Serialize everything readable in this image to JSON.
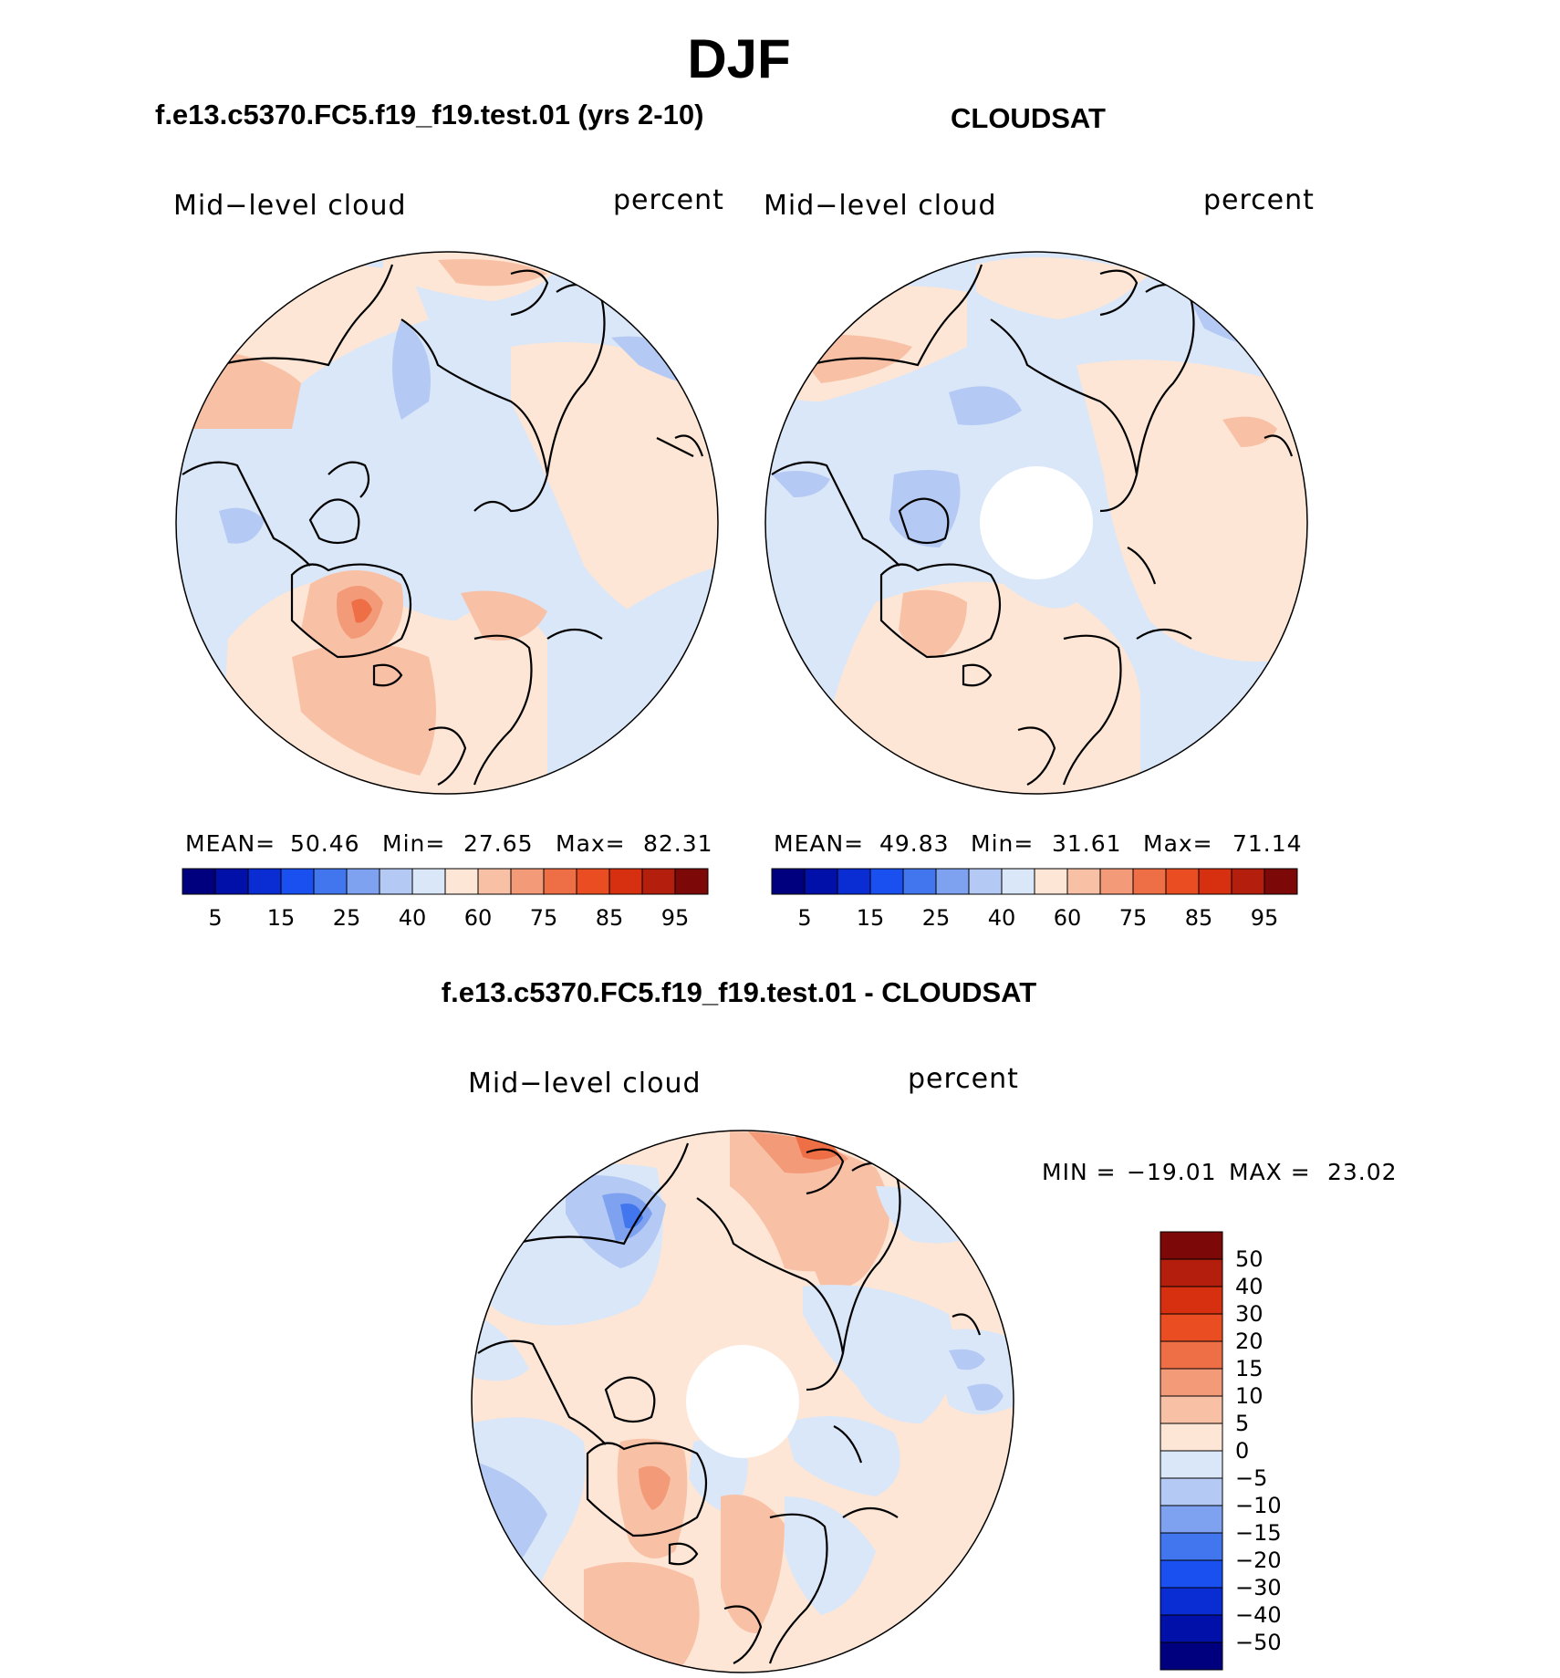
{
  "season": "DJF",
  "panels": {
    "model": {
      "title": "f.e13.c5370.FC5.f19_f19.test.01 (yrs 2-10)",
      "variable": "Mid−level cloud",
      "units": "percent",
      "mean_label": "MEAN=",
      "mean": "50.46",
      "min_label": "Min=",
      "min": "27.65",
      "max_label": "Max=",
      "max": "82.31"
    },
    "obs": {
      "title": "CLOUDSAT",
      "variable": "Mid−level cloud",
      "units": "percent",
      "mean_label": "MEAN=",
      "mean": "49.83",
      "min_label": "Min=",
      "min": "31.61",
      "max_label": "Max=",
      "max": "71.14"
    },
    "diff": {
      "title": "f.e13.c5370.FC5.f19_f19.test.01 - CLOUDSAT",
      "variable": "Mid−level cloud",
      "units": "percent",
      "min_label": "MIN =",
      "min": "−19.01",
      "max_label": "MAX =",
      "max": "23.02"
    }
  },
  "colorbar_abs": {
    "colors": [
      "#00007f",
      "#0010a8",
      "#0a2cd3",
      "#1a4ff0",
      "#4276ee",
      "#7ea2f0",
      "#b4c9f3",
      "#dae7f8",
      "#fde6d6",
      "#f8c1a6",
      "#f39a78",
      "#ee6e46",
      "#ea4d22",
      "#d63010",
      "#b41e0c",
      "#7c0808"
    ],
    "tick_labels": [
      "5",
      "15",
      "25",
      "40",
      "60",
      "75",
      "85",
      "95"
    ]
  },
  "colorbar_diff": {
    "colors": [
      "#7c0808",
      "#b41e0c",
      "#d63010",
      "#ea4d22",
      "#ee6e46",
      "#f39a78",
      "#f8c1a6",
      "#fde6d6",
      "#dae7f8",
      "#b4c9f3",
      "#7ea2f0",
      "#4276ee",
      "#1a4ff0",
      "#0a2cd3",
      "#0010a8",
      "#00007f"
    ],
    "tick_labels": [
      "50",
      "40",
      "30",
      "20",
      "15",
      "10",
      "5",
      "0",
      "−5",
      "−10",
      "−15",
      "−20",
      "−30",
      "−40",
      "−50"
    ]
  },
  "colors": {
    "light_blue": "#dae7f8",
    "light_orange": "#fde6d6",
    "mid_blue": "#b4c9f3",
    "mid_orange": "#f8c1a6",
    "coast": "#000000"
  }
}
